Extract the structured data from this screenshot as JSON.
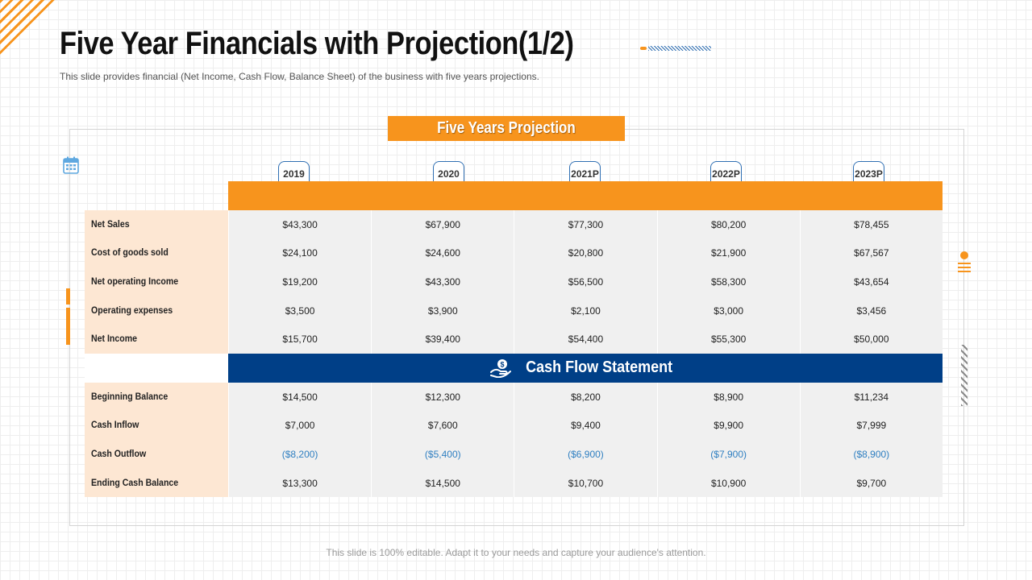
{
  "slide": {
    "title": "Five Year Financials with Projection(1/2)",
    "subtitle": "This slide provides  financial (Net Income, Cash Flow, Balance Sheet) of the business with five  years projections.",
    "footer": "This slide is 100% editable. Adapt it to your needs and capture your audience's attention."
  },
  "colors": {
    "accent": "#f7941d",
    "primary": "#003f87",
    "label_bg": "#fde7d3",
    "negative": "#2f7fc1"
  },
  "projection": {
    "banner": "Five Years Projection",
    "years": [
      "2019",
      "2020",
      "2021P",
      "2022P",
      "2023P"
    ],
    "rows": [
      {
        "label": "Net Sales",
        "values": [
          "$43,300",
          "$67,900",
          "$77,300",
          "$80,200",
          "$78,455"
        ]
      },
      {
        "label": "Cost of goods sold",
        "values": [
          "$24,100",
          "$24,600",
          "$20,800",
          "$21,900",
          "$67,567"
        ]
      },
      {
        "label": "Net operating Income",
        "values": [
          "$19,200",
          "$43,300",
          "$56,500",
          "$58,300",
          "$43,654"
        ]
      },
      {
        "label": "Operating expenses",
        "values": [
          "$3,500",
          "$3,900",
          "$2,100",
          "$3,000",
          "$3,456"
        ]
      },
      {
        "label": "Net Income",
        "values": [
          "$15,700",
          "$39,400",
          "$54,400",
          "$55,300",
          "$50,000"
        ]
      }
    ]
  },
  "cash_flow": {
    "header": "Cash Flow Statement",
    "icon": "money-hand-icon",
    "rows": [
      {
        "label": "Beginning Balance",
        "values": [
          "$14,500",
          "$12,300",
          "$8,200",
          "$8,900",
          "$11,234"
        ]
      },
      {
        "label": "Cash Inflow",
        "values": [
          "$7,000",
          "$7,600",
          "$9,400",
          "$9,900",
          "$7,999"
        ]
      },
      {
        "label": "Cash Outflow",
        "values": [
          "($8,200)",
          "($5,400)",
          "($6,900)",
          "($7,900)",
          "($8,900)"
        ]
      },
      {
        "label": "Ending Cash Balance",
        "values": [
          "$13,300",
          "$14,500",
          "$10,700",
          "$10,900",
          "$9,700"
        ]
      }
    ]
  }
}
